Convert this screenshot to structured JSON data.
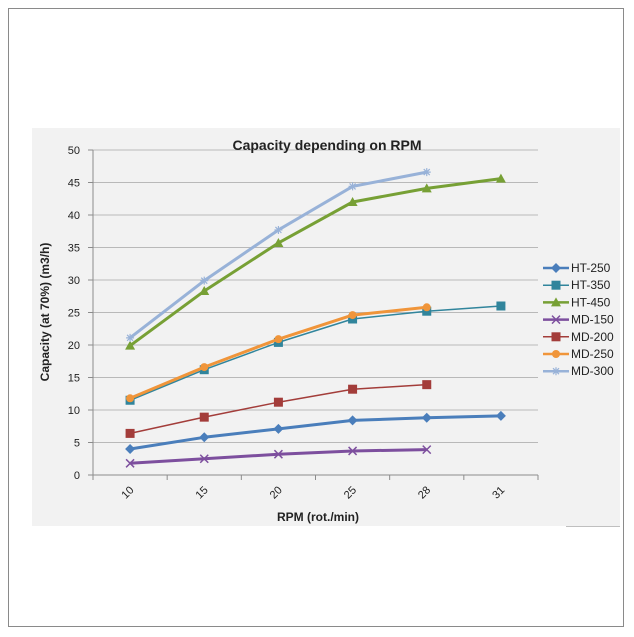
{
  "chart_data": {
    "type": "line",
    "title": "Capacity depending on RPM",
    "xlabel": "RPM (rot./min)",
    "ylabel": "Capacity (at 70%) (m3/h)",
    "categories": [
      "10",
      "15",
      "20",
      "25",
      "28",
      "31"
    ],
    "ylim": [
      0,
      50
    ],
    "yticks": [
      "0",
      "5",
      "10",
      "15",
      "20",
      "25",
      "30",
      "35",
      "40",
      "45",
      "50"
    ],
    "grid": true,
    "legend_position": "right",
    "series": [
      {
        "name": "HT-250",
        "color": "#4a7ebb",
        "marker": "diamond",
        "width": 3,
        "values": [
          4.0,
          5.8,
          7.1,
          8.4,
          8.8,
          9.1
        ]
      },
      {
        "name": "HT-350",
        "color": "#31859c",
        "marker": "square",
        "width": 1.5,
        "values": [
          11.5,
          16.2,
          20.4,
          24.0,
          25.2,
          26.0
        ]
      },
      {
        "name": "HT-450",
        "color": "#77a035",
        "marker": "triangle",
        "width": 3,
        "values": [
          19.9,
          28.3,
          35.7,
          42.0,
          44.1,
          45.6
        ]
      },
      {
        "name": "MD-150",
        "color": "#7d4f9e",
        "marker": "x",
        "width": 3,
        "values": [
          1.8,
          2.5,
          3.2,
          3.7,
          3.9,
          null
        ]
      },
      {
        "name": "MD-200",
        "color": "#a33d3a",
        "marker": "square",
        "width": 1.5,
        "values": [
          6.4,
          8.9,
          11.2,
          13.2,
          13.9,
          null
        ]
      },
      {
        "name": "MD-250",
        "color": "#f0953a",
        "marker": "circle",
        "width": 3,
        "values": [
          11.8,
          16.6,
          20.9,
          24.6,
          25.8,
          null
        ]
      },
      {
        "name": "MD-300",
        "color": "#98b2d8",
        "marker": "star",
        "width": 3,
        "values": [
          21.1,
          29.9,
          37.7,
          44.4,
          46.6,
          null
        ]
      }
    ]
  }
}
